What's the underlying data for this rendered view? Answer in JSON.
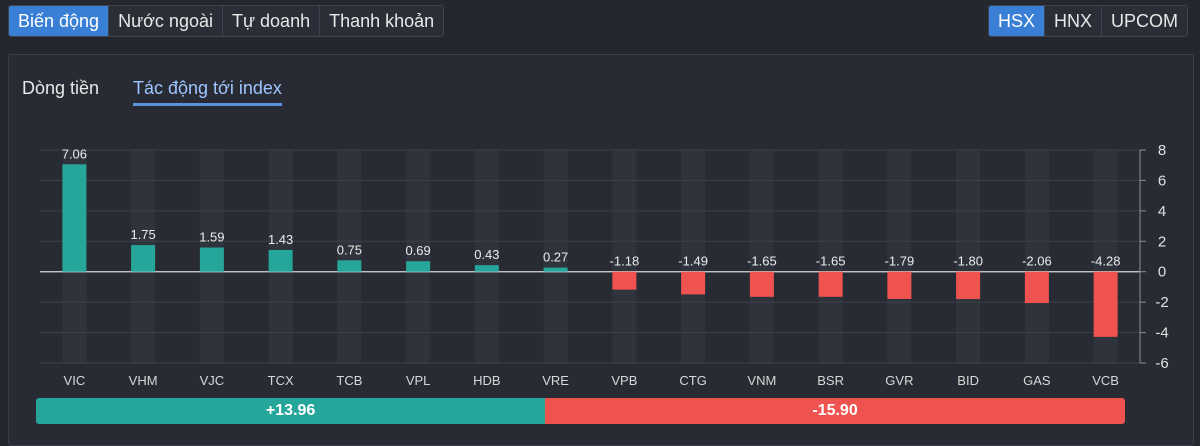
{
  "tabs_left": [
    {
      "label": "Biến động",
      "active": true
    },
    {
      "label": "Nước ngoài",
      "active": false
    },
    {
      "label": "Tự doanh",
      "active": false
    },
    {
      "label": "Thanh khoản",
      "active": false
    }
  ],
  "tabs_right": [
    {
      "label": "HSX",
      "active": true
    },
    {
      "label": "HNX",
      "active": false
    },
    {
      "label": "UPCOM",
      "active": false
    }
  ],
  "subtabs": [
    {
      "label": "Dòng tiền",
      "active": false
    },
    {
      "label": "Tác động tới index",
      "active": true
    }
  ],
  "colors": {
    "positive": "#26a69a",
    "negative": "#ef5350",
    "accent": "#3a7fd6"
  },
  "chart_data": {
    "type": "bar",
    "categories": [
      "VIC",
      "VHM",
      "VJC",
      "TCX",
      "TCB",
      "VPL",
      "HDB",
      "VRE",
      "VPB",
      "CTG",
      "VNM",
      "BSR",
      "GVR",
      "BID",
      "GAS",
      "VCB"
    ],
    "values": [
      7.06,
      1.75,
      1.59,
      1.43,
      0.75,
      0.69,
      0.43,
      0.27,
      -1.18,
      -1.49,
      -1.65,
      -1.65,
      -1.79,
      -1.8,
      -2.06,
      -4.28
    ],
    "value_labels": [
      "7.06",
      "1.75",
      "1.59",
      "1.43",
      "0.75",
      "0.69",
      "0.43",
      "0.27",
      "-1.18",
      "-1.49",
      "-1.65",
      "-1.65",
      "-1.79",
      "-1.80",
      "-2.06",
      "-4.28"
    ],
    "yticks": [
      8,
      6,
      4,
      2,
      0,
      -2,
      -4,
      -6
    ],
    "ylim": [
      -6,
      8
    ],
    "y_axis_position": "right",
    "grid": true
  },
  "summary": {
    "positive_label": "+13.96",
    "negative_label": "-15.90",
    "positive_total": 13.96,
    "negative_total": 15.9
  }
}
